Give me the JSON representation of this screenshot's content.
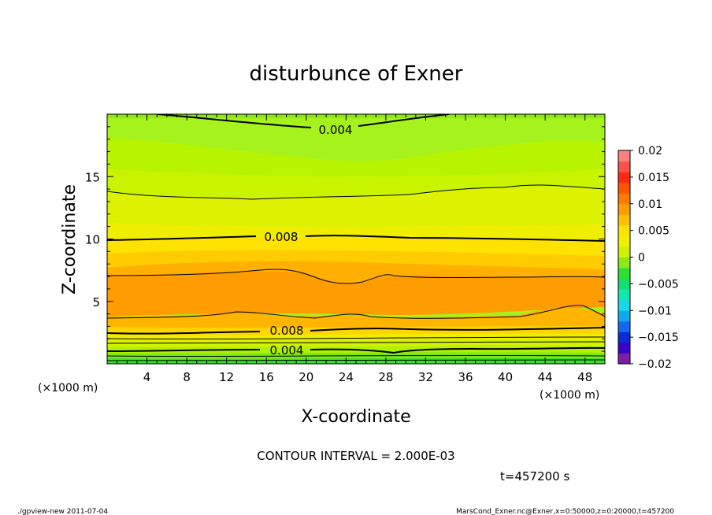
{
  "chart_data": {
    "type": "contour",
    "title": "disturbunce of Exner",
    "xlabel": "X-coordinate",
    "ylabel": "Z-coordinate",
    "x_unit": "(×1000 m)",
    "y_unit": "(×1000 m)",
    "xlim": [
      0,
      50
    ],
    "ylim": [
      0,
      20
    ],
    "x_ticks": [
      4,
      8,
      12,
      16,
      20,
      24,
      28,
      32,
      36,
      40,
      44,
      48
    ],
    "y_ticks": [
      5,
      10,
      15
    ],
    "contour_labels": [
      {
        "text": "0.004",
        "x": 23,
        "z": 18.9
      },
      {
        "text": "0.008",
        "x": 17,
        "z": 10.3
      },
      {
        "text": "0.008",
        "x": 18,
        "z": 2.7
      },
      {
        "text": "0.004",
        "x": 18,
        "z": 1.1
      }
    ],
    "colorbar": {
      "levels": [
        -0.02,
        -0.015,
        -0.01,
        -0.005,
        0,
        0.005,
        0.01,
        0.015,
        0.02
      ],
      "labels": [
        "0.02",
        "0.015",
        "0.01",
        "0.005",
        "0",
        "−0.005",
        "−0.01",
        "−0.015",
        "−0.02"
      ],
      "colors": [
        "#7f1fa8",
        "#3a00c8",
        "#0c2ad8",
        "#1068f0",
        "#10a8f0",
        "#18d8e8",
        "#10e8b0",
        "#10e070",
        "#2ee030",
        "#8ee818",
        "#d0f000",
        "#eef000",
        "#ffe000",
        "#ffc000",
        "#ff9c00",
        "#ff7a00",
        "#ff5400",
        "#ff2a10",
        "#ff5050",
        "#ff8080"
      ]
    },
    "contour_interval_text": "CONTOUR INTERVAL = 2.000E-03",
    "time_text": "t=457200 s"
  },
  "footer": {
    "left": "./gpview-new   2011-07-04",
    "right": "MarsCond_Exner.nc@Exner,x=0:50000,z=0:20000,t=457200"
  }
}
